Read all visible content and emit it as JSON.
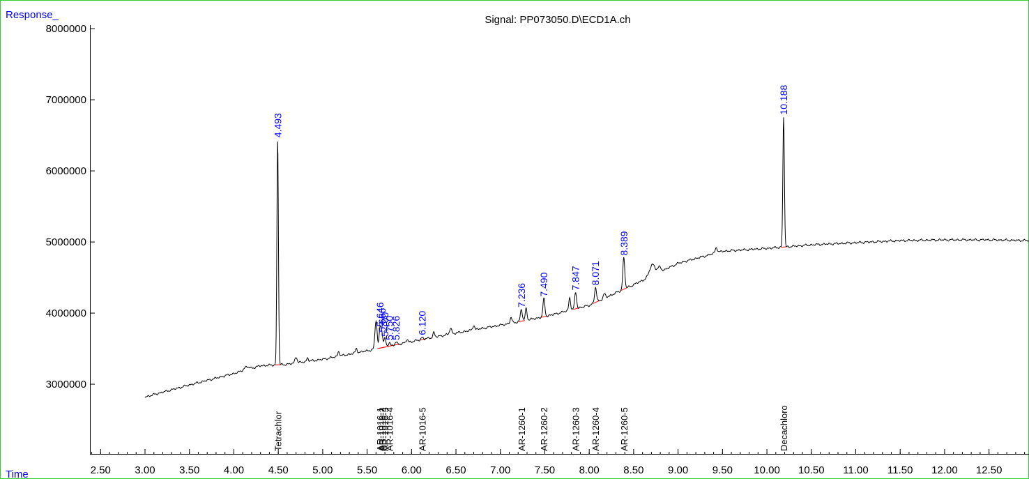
{
  "colors": {
    "frame": "#33cc33",
    "axis_label": "#0000ff",
    "peak_label": "#0000ff",
    "trace": "#000000",
    "integration_baseline": "#ff0000"
  },
  "chart_data": {
    "type": "line",
    "title": "Signal: PP073050.D\\ECD1A.ch",
    "ylabel": "Response_",
    "xlabel": "Time",
    "xlim": [
      2.38,
      12.95
    ],
    "ylim": [
      2020000,
      8050000
    ],
    "x_ticks_major": [
      2.5,
      3.0,
      3.5,
      4.0,
      4.5,
      5.0,
      5.5,
      6.0,
      6.5,
      7.0,
      7.5,
      8.0,
      8.5,
      9.0,
      9.5,
      10.0,
      10.5,
      11.0,
      11.5,
      12.0,
      12.5
    ],
    "x_tick_labels": [
      "2.50",
      "3.00",
      "3.50",
      "4.00",
      "4.50",
      "5.00",
      "5.50",
      "6.00",
      "6.50",
      "7.00",
      "7.50",
      "8.00",
      "8.50",
      "9.00",
      "9.50",
      "10.00",
      "10.50",
      "11.00",
      "11.50",
      "12.00",
      "12.50"
    ],
    "x_minor_step": 0.1,
    "y_ticks": [
      3000000,
      4000000,
      5000000,
      6000000,
      7000000,
      8000000
    ],
    "y_tick_labels": [
      "3000000",
      "4000000",
      "5000000",
      "6000000",
      "7000000",
      "8000000"
    ],
    "grid": false,
    "legend": "none",
    "baseline": {
      "x": [
        3.0,
        3.5,
        4.0,
        4.3,
        4.6,
        5.0,
        5.5,
        6.0,
        6.5,
        7.0,
        7.5,
        8.0,
        8.5,
        9.0,
        9.5,
        10.0,
        10.5,
        11.0,
        11.5,
        12.0,
        12.5,
        12.95
      ],
      "y": [
        2820000,
        2990000,
        3150000,
        3260000,
        3280000,
        3350000,
        3470000,
        3600000,
        3720000,
        3830000,
        3950000,
        4110000,
        4400000,
        4700000,
        4870000,
        4910000,
        4960000,
        4990000,
        5020000,
        5030000,
        5030000,
        5020000
      ]
    },
    "bumps": [
      {
        "t": 4.14,
        "h": 40000,
        "w": 0.03
      },
      {
        "t": 4.7,
        "h": 90000,
        "w": 0.012
      },
      {
        "t": 4.83,
        "h": 50000,
        "w": 0.01
      },
      {
        "t": 5.18,
        "h": 70000,
        "w": 0.01
      },
      {
        "t": 5.38,
        "h": 60000,
        "w": 0.01
      },
      {
        "t": 5.6,
        "h": 400000,
        "w": 0.012
      },
      {
        "t": 5.95,
        "h": 40000,
        "w": 0.01
      },
      {
        "t": 6.25,
        "h": 70000,
        "w": 0.01
      },
      {
        "t": 6.44,
        "h": 80000,
        "w": 0.012
      },
      {
        "t": 6.7,
        "h": 70000,
        "w": 0.01
      },
      {
        "t": 7.12,
        "h": 80000,
        "w": 0.01
      },
      {
        "t": 7.29,
        "h": 170000,
        "w": 0.01
      },
      {
        "t": 7.78,
        "h": 180000,
        "w": 0.01
      },
      {
        "t": 8.17,
        "h": 60000,
        "w": 0.012
      },
      {
        "t": 8.71,
        "h": 160000,
        "w": 0.03
      },
      {
        "t": 8.79,
        "h": 70000,
        "w": 0.02
      },
      {
        "t": 9.43,
        "h": 80000,
        "w": 0.012
      }
    ],
    "peaks": [
      {
        "rt": 4.493,
        "label": "4.493",
        "apex": 6440000
      },
      {
        "rt": 5.646,
        "label": "5.646",
        "apex": 3780000
      },
      {
        "rt": 5.666,
        "label": "5.666",
        "apex": 3700000
      },
      {
        "rt": 5.7,
        "label": "5.700",
        "apex": 3640000
      },
      {
        "rt": 5.75,
        "label": "5.750",
        "apex": 3590000
      },
      {
        "rt": 5.826,
        "label": "5.826",
        "apex": 3590000
      },
      {
        "rt": 6.12,
        "label": "6.120",
        "apex": 3660000
      },
      {
        "rt": 7.236,
        "label": "7.236",
        "apex": 4050000
      },
      {
        "rt": 7.49,
        "label": "7.490",
        "apex": 4200000
      },
      {
        "rt": 7.847,
        "label": "7.847",
        "apex": 4290000
      },
      {
        "rt": 8.071,
        "label": "8.071",
        "apex": 4360000
      },
      {
        "rt": 8.389,
        "label": "8.389",
        "apex": 4780000
      },
      {
        "rt": 10.188,
        "label": "10.188",
        "apex": 6760000
      }
    ],
    "compounds": [
      {
        "rt": 4.493,
        "label": "Tetrachlor"
      },
      {
        "rt": 5.646,
        "label": "AR-1016-1"
      },
      {
        "rt": 5.666,
        "label": "AR-1016-2"
      },
      {
        "rt": 5.7,
        "label": "AR-1016-3"
      },
      {
        "rt": 5.75,
        "label": "AR-1016-4"
      },
      {
        "rt": 6.12,
        "label": "AR-1016-5"
      },
      {
        "rt": 7.236,
        "label": "AR-1260-1"
      },
      {
        "rt": 7.49,
        "label": "AR-1260-2"
      },
      {
        "rt": 7.847,
        "label": "AR-1260-3"
      },
      {
        "rt": 8.071,
        "label": "AR-1260-4"
      },
      {
        "rt": 8.389,
        "label": "AR-1260-5"
      },
      {
        "rt": 10.188,
        "label": "Decachloro"
      }
    ]
  }
}
